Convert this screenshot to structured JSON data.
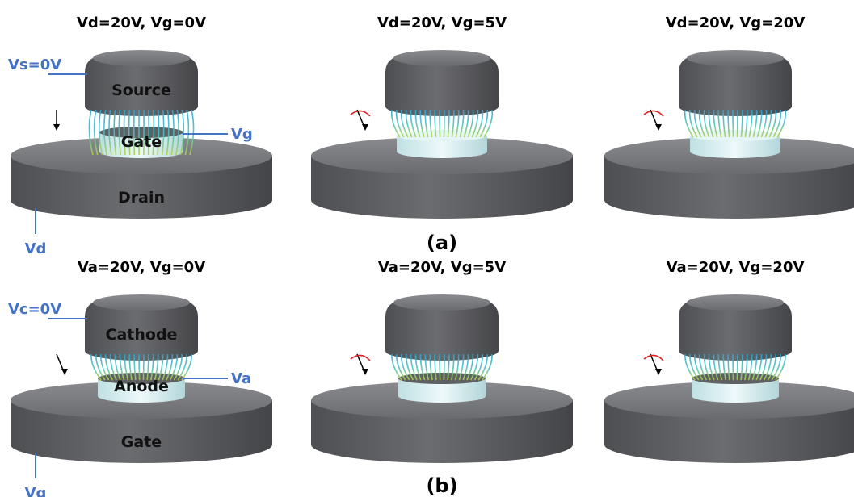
{
  "colors": {
    "device_body": "#5b5c5f",
    "device_top": "#77787c",
    "pillar": "#d7eef0",
    "annotation_blue": "#4472c4",
    "text": "#000000",
    "field_line_cool": "#2aa6d4",
    "field_line_warm": "#b5d33a",
    "arrow_red": "#e02020"
  },
  "row_a": {
    "tag": "(a)",
    "panels": [
      {
        "title": "Vd=20V, Vg=0V",
        "top_label": "Source",
        "middle_label": "Gate",
        "bottom_label": "Drain"
      },
      {
        "title": "Vd=20V, Vg=5V",
        "top_label": "",
        "middle_label": "",
        "bottom_label": ""
      },
      {
        "title": "Vd=20V, Vg=20V",
        "top_label": "",
        "middle_label": "",
        "bottom_label": ""
      }
    ],
    "terminals": {
      "top": "Vs=0V",
      "middle": "Vg",
      "bottom": "Vd"
    }
  },
  "row_b": {
    "tag": "(b)",
    "panels": [
      {
        "title": "Va=20V, Vg=0V",
        "top_label": "Cathode",
        "middle_label": "Anode",
        "bottom_label": "Gate"
      },
      {
        "title": "Va=20V, Vg=5V",
        "top_label": "",
        "middle_label": "",
        "bottom_label": ""
      },
      {
        "title": "Va=20V, Vg=20V",
        "top_label": "",
        "middle_label": "",
        "bottom_label": ""
      }
    ],
    "terminals": {
      "top": "Vc=0V",
      "middle": "Va",
      "bottom": "Vg"
    }
  }
}
